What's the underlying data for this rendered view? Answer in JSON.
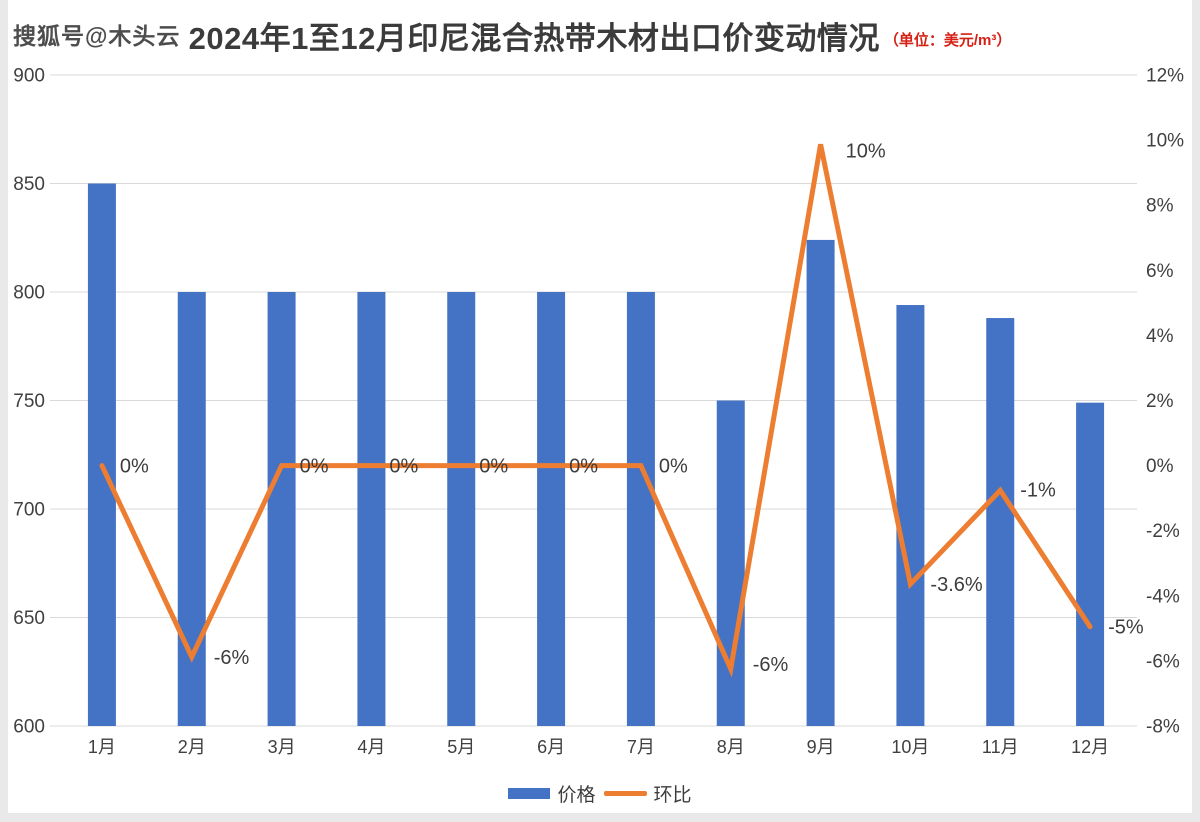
{
  "watermark": "搜狐号@木头云",
  "title": {
    "main": "2024年1至12月印尼混合热带木材出口价变动情况",
    "unit": "（单位：美元/m³）"
  },
  "legend": {
    "bar_label": "价格",
    "line_label": "环比"
  },
  "colors": {
    "bar": "#4472c4",
    "line": "#ed7d31",
    "grid": "#d9d9d9",
    "axis_text": "#404040",
    "title_text": "#3b3b3b",
    "unit_text": "#d62015",
    "page_background": "#e9e9e9",
    "card_background": "#ffffff"
  },
  "chart_data": {
    "type": "bar",
    "subtype": "combo-bar-line",
    "title": "2024年1至12月印尼混合热带木材出口价变动情况",
    "unit": "美元/m³",
    "categories": [
      "1月",
      "2月",
      "3月",
      "4月",
      "5月",
      "6月",
      "7月",
      "8月",
      "9月",
      "10月",
      "11月",
      "12月"
    ],
    "series": [
      {
        "name": "价格",
        "type": "bar",
        "axis": "left",
        "color": "#4472c4",
        "values": [
          850,
          800,
          800,
          800,
          800,
          800,
          800,
          750,
          824,
          794,
          788,
          749
        ]
      },
      {
        "name": "环比",
        "type": "line",
        "axis": "right",
        "color": "#ed7d31",
        "values_pct": [
          0,
          -5.88,
          0,
          0,
          0,
          0,
          0,
          -6.25,
          9.87,
          -3.64,
          -0.76,
          -4.95
        ],
        "point_labels": [
          "0%",
          "-6%",
          "0%",
          "0%",
          "0%",
          "0%",
          "0%",
          "-6%",
          "10%",
          "-3.6%",
          "-1%",
          "-5%"
        ],
        "label_dx": [
          18,
          22,
          18,
          18,
          18,
          18,
          18,
          22,
          25,
          20,
          20,
          18
        ],
        "label_dy": [
          0,
          0,
          0,
          0,
          0,
          0,
          0,
          -5,
          6,
          0,
          -1,
          0
        ]
      }
    ],
    "left_axis": {
      "min": 600,
      "max": 900,
      "tick_step": 50,
      "ticks": [
        900,
        850,
        800,
        750,
        700,
        650,
        600
      ]
    },
    "right_axis": {
      "min": -8,
      "max": 12,
      "tick_step": 2,
      "tick_labels": [
        "12%",
        "10%",
        "8%",
        "6%",
        "4%",
        "2%",
        "0%",
        "-2%",
        "-4%",
        "-6%",
        "-8%"
      ]
    },
    "grid": true,
    "legend_position": "bottom"
  }
}
